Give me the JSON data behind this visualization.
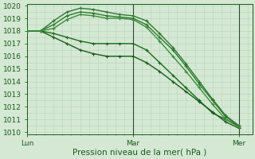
{
  "background_color": "#d4e8d4",
  "grid_color_minor": "#b8d4b8",
  "grid_color_major": "#b8d4b8",
  "line_color_dark": "#1a5c1a",
  "ylabel_range": [
    1010,
    1020
  ],
  "yticks": [
    1010,
    1011,
    1012,
    1013,
    1014,
    1015,
    1016,
    1017,
    1018,
    1019,
    1020
  ],
  "xlabel": "Pression niveau de la mer( hPa )",
  "xtick_labels": [
    "Lun",
    "Mar",
    "Mer"
  ],
  "xtick_positions": [
    0,
    24,
    48
  ],
  "xlim": [
    0,
    51
  ],
  "lines": [
    {
      "x": [
        0,
        3,
        6,
        9,
        12,
        15,
        18,
        21,
        24,
        27,
        30,
        33,
        36,
        39,
        42,
        45,
        48
      ],
      "y": [
        1018,
        1018,
        1017.8,
        1017.5,
        1017.2,
        1017.0,
        1017.0,
        1017.0,
        1017.0,
        1016.5,
        1015.5,
        1014.5,
        1013.5,
        1012.5,
        1011.5,
        1011.0,
        1010.5
      ],
      "color": "#1a6b1a",
      "lw": 1.0,
      "marker": "+"
    },
    {
      "x": [
        0,
        3,
        6,
        9,
        12,
        15,
        18,
        21,
        24,
        27,
        30,
        33,
        36,
        39,
        42,
        45,
        48
      ],
      "y": [
        1018,
        1018,
        1017.5,
        1017.0,
        1016.5,
        1016.2,
        1016.0,
        1016.0,
        1016.0,
        1015.5,
        1014.8,
        1014.0,
        1013.2,
        1012.4,
        1011.6,
        1010.8,
        1010.3
      ],
      "color": "#1a5c1a",
      "lw": 1.0,
      "marker": "+"
    },
    {
      "x": [
        0,
        3,
        6,
        9,
        12,
        15,
        18,
        21,
        24,
        27,
        30,
        33,
        36,
        39,
        42,
        45,
        48
      ],
      "y": [
        1018,
        1018,
        1018.5,
        1019.2,
        1019.5,
        1019.4,
        1019.2,
        1019.1,
        1019.0,
        1018.5,
        1017.5,
        1016.5,
        1015.2,
        1013.8,
        1012.5,
        1011.2,
        1010.5
      ],
      "color": "#2d7a2d",
      "lw": 1.0,
      "marker": "+"
    },
    {
      "x": [
        0,
        3,
        6,
        9,
        12,
        15,
        18,
        21,
        24,
        27,
        30,
        33,
        36,
        39,
        42,
        45,
        48
      ],
      "y": [
        1018,
        1018,
        1018.8,
        1019.5,
        1019.8,
        1019.7,
        1019.5,
        1019.3,
        1019.2,
        1018.8,
        1017.8,
        1016.7,
        1015.4,
        1014.0,
        1012.6,
        1011.3,
        1010.5
      ],
      "color": "#2d7a2d",
      "lw": 1.0,
      "marker": "+"
    },
    {
      "x": [
        0,
        3,
        6,
        9,
        12,
        15,
        18,
        21,
        24,
        27,
        30,
        33,
        36,
        39,
        42,
        45,
        48
      ],
      "y": [
        1018,
        1018,
        1018.2,
        1018.9,
        1019.3,
        1019.2,
        1019.0,
        1019.0,
        1018.9,
        1018.3,
        1017.2,
        1016.0,
        1014.8,
        1013.5,
        1012.2,
        1011.0,
        1010.4
      ],
      "color": "#3a8c3a",
      "lw": 1.0,
      "marker": "+"
    }
  ],
  "vlines": [
    24,
    48
  ],
  "vline_color": "#2a4a2a",
  "tick_fontsize": 6.5,
  "xlabel_fontsize": 7.5
}
